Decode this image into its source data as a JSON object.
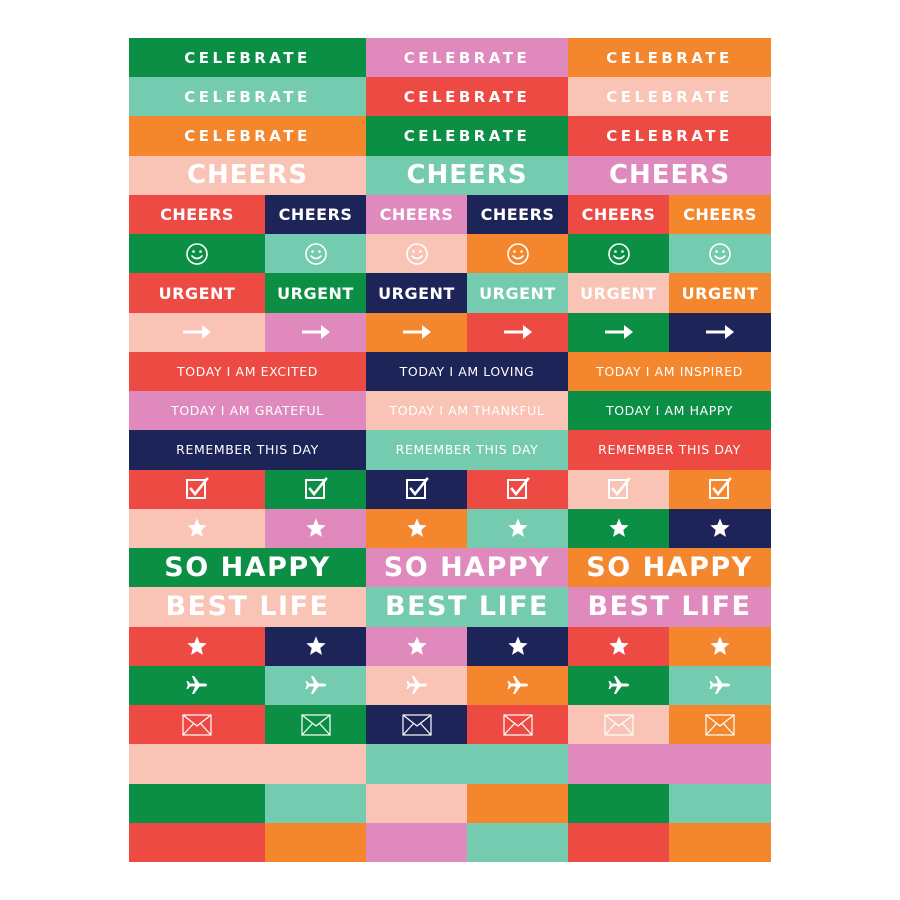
{
  "colors": {
    "green": "#0b8f45",
    "mint": "#74cbb0",
    "orange": "#f4862e",
    "red": "#ee4a44",
    "peach": "#f9c3b5",
    "pink": "#df89bd",
    "navy": "#1c2458"
  },
  "rows": [
    {
      "cells": [
        {
          "span": 2,
          "color": "green",
          "text": "CELEBRATE",
          "style": "spaced"
        },
        {
          "span": 2,
          "color": "pink",
          "text": "CELEBRATE",
          "style": "spaced"
        },
        {
          "span": 2,
          "color": "orange",
          "text": "CELEBRATE",
          "style": "spaced"
        }
      ]
    },
    {
      "cells": [
        {
          "span": 2,
          "color": "mint",
          "text": "CELEBRATE",
          "style": "spaced"
        },
        {
          "span": 2,
          "color": "red",
          "text": "CELEBRATE",
          "style": "spaced"
        },
        {
          "span": 2,
          "color": "peach",
          "text": "CELEBRATE",
          "style": "spaced"
        }
      ]
    },
    {
      "cells": [
        {
          "span": 2,
          "color": "orange",
          "text": "CELEBRATE",
          "style": "spaced"
        },
        {
          "span": 2,
          "color": "green",
          "text": "CELEBRATE",
          "style": "spaced"
        },
        {
          "span": 2,
          "color": "red",
          "text": "CELEBRATE",
          "style": "spaced"
        }
      ]
    },
    {
      "cells": [
        {
          "span": 2,
          "color": "peach",
          "text": "CHEERS",
          "style": "big"
        },
        {
          "span": 2,
          "color": "mint",
          "text": "CHEERS",
          "style": "big"
        },
        {
          "span": 2,
          "color": "pink",
          "text": "CHEERS",
          "style": "big"
        }
      ]
    },
    {
      "cells": [
        {
          "span": 1,
          "color": "red",
          "text": "CHEERS",
          "style": "mid"
        },
        {
          "span": 1,
          "color": "navy",
          "text": "CHEERS",
          "style": "mid"
        },
        {
          "span": 1,
          "color": "pink",
          "text": "CHEERS",
          "style": "mid"
        },
        {
          "span": 1,
          "color": "navy",
          "text": "CHEERS",
          "style": "mid"
        },
        {
          "span": 1,
          "color": "red",
          "text": "CHEERS",
          "style": "mid"
        },
        {
          "span": 1,
          "color": "orange",
          "text": "CHEERS",
          "style": "mid"
        }
      ]
    },
    {
      "cells": [
        {
          "span": 1,
          "color": "green",
          "icon": "smiley-icon"
        },
        {
          "span": 1,
          "color": "mint",
          "icon": "smiley-icon"
        },
        {
          "span": 1,
          "color": "peach",
          "icon": "smiley-icon"
        },
        {
          "span": 1,
          "color": "orange",
          "icon": "smiley-icon"
        },
        {
          "span": 1,
          "color": "green",
          "icon": "smiley-icon"
        },
        {
          "span": 1,
          "color": "mint",
          "icon": "smiley-icon"
        }
      ]
    },
    {
      "cells": [
        {
          "span": 1,
          "color": "red",
          "text": "URGENT",
          "style": "mid"
        },
        {
          "span": 1,
          "color": "green",
          "text": "URGENT",
          "style": "mid"
        },
        {
          "span": 1,
          "color": "navy",
          "text": "URGENT",
          "style": "mid"
        },
        {
          "span": 1,
          "color": "mint",
          "text": "URGENT",
          "style": "mid"
        },
        {
          "span": 1,
          "color": "peach",
          "text": "URGENT",
          "style": "mid"
        },
        {
          "span": 1,
          "color": "orange",
          "text": "URGENT",
          "style": "mid"
        }
      ]
    },
    {
      "cells": [
        {
          "span": 1,
          "color": "peach",
          "icon": "arrow-right-icon"
        },
        {
          "span": 1,
          "color": "pink",
          "icon": "arrow-right-icon"
        },
        {
          "span": 1,
          "color": "orange",
          "icon": "arrow-right-icon"
        },
        {
          "span": 1,
          "color": "red",
          "icon": "arrow-right-icon"
        },
        {
          "span": 1,
          "color": "green",
          "icon": "arrow-right-icon"
        },
        {
          "span": 1,
          "color": "navy",
          "icon": "arrow-right-icon"
        }
      ]
    },
    {
      "cells": [
        {
          "span": 2,
          "color": "red",
          "text": "TODAY I AM EXCITED",
          "style": "small"
        },
        {
          "span": 2,
          "color": "navy",
          "text": "TODAY I AM LOVING",
          "style": "small"
        },
        {
          "span": 2,
          "color": "orange",
          "text": "TODAY I AM INSPIRED",
          "style": "small"
        }
      ]
    },
    {
      "cells": [
        {
          "span": 2,
          "color": "pink",
          "text": "TODAY I AM GRATEFUL",
          "style": "small"
        },
        {
          "span": 2,
          "color": "peach",
          "text": "TODAY I AM THANKFUL",
          "style": "small"
        },
        {
          "span": 2,
          "color": "green",
          "text": "TODAY I AM HAPPY",
          "style": "small"
        }
      ]
    },
    {
      "cells": [
        {
          "span": 2,
          "color": "navy",
          "text": "REMEMBER THIS DAY",
          "style": "small"
        },
        {
          "span": 2,
          "color": "mint",
          "text": "REMEMBER THIS DAY",
          "style": "small"
        },
        {
          "span": 2,
          "color": "red",
          "text": "REMEMBER THIS DAY",
          "style": "small"
        }
      ]
    },
    {
      "cells": [
        {
          "span": 1,
          "color": "red",
          "icon": "checkbox-icon"
        },
        {
          "span": 1,
          "color": "green",
          "icon": "checkbox-icon"
        },
        {
          "span": 1,
          "color": "navy",
          "icon": "checkbox-icon"
        },
        {
          "span": 1,
          "color": "red",
          "icon": "checkbox-icon"
        },
        {
          "span": 1,
          "color": "peach",
          "icon": "checkbox-icon"
        },
        {
          "span": 1,
          "color": "orange",
          "icon": "checkbox-icon"
        }
      ]
    },
    {
      "cells": [
        {
          "span": 1,
          "color": "peach",
          "icon": "star-icon"
        },
        {
          "span": 1,
          "color": "pink",
          "icon": "star-icon"
        },
        {
          "span": 1,
          "color": "orange",
          "icon": "star-icon"
        },
        {
          "span": 1,
          "color": "mint",
          "icon": "star-icon"
        },
        {
          "span": 1,
          "color": "green",
          "icon": "star-icon"
        },
        {
          "span": 1,
          "color": "navy",
          "icon": "star-icon"
        }
      ]
    },
    {
      "cells": [
        {
          "span": 2,
          "color": "green",
          "text": "SO HAPPY",
          "style": "xl"
        },
        {
          "span": 2,
          "color": "pink",
          "text": "SO HAPPY",
          "style": "xl"
        },
        {
          "span": 2,
          "color": "orange",
          "text": "SO HAPPY",
          "style": "xl"
        }
      ]
    },
    {
      "cells": [
        {
          "span": 2,
          "color": "peach",
          "text": "BEST LIFE",
          "style": "xl"
        },
        {
          "span": 2,
          "color": "mint",
          "text": "BEST LIFE",
          "style": "xl"
        },
        {
          "span": 2,
          "color": "pink",
          "text": "BEST LIFE",
          "style": "xl"
        }
      ]
    },
    {
      "cells": [
        {
          "span": 1,
          "color": "red",
          "icon": "star-icon"
        },
        {
          "span": 1,
          "color": "navy",
          "icon": "star-icon"
        },
        {
          "span": 1,
          "color": "pink",
          "icon": "star-icon"
        },
        {
          "span": 1,
          "color": "navy",
          "icon": "star-icon"
        },
        {
          "span": 1,
          "color": "red",
          "icon": "star-icon"
        },
        {
          "span": 1,
          "color": "orange",
          "icon": "star-icon"
        }
      ]
    },
    {
      "cells": [
        {
          "span": 1,
          "color": "green",
          "icon": "airplane-icon"
        },
        {
          "span": 1,
          "color": "mint",
          "icon": "airplane-icon"
        },
        {
          "span": 1,
          "color": "peach",
          "icon": "airplane-icon"
        },
        {
          "span": 1,
          "color": "orange",
          "icon": "airplane-icon"
        },
        {
          "span": 1,
          "color": "green",
          "icon": "airplane-icon"
        },
        {
          "span": 1,
          "color": "mint",
          "icon": "airplane-icon"
        }
      ]
    },
    {
      "cells": [
        {
          "span": 1,
          "color": "red",
          "icon": "envelope-icon"
        },
        {
          "span": 1,
          "color": "green",
          "icon": "envelope-icon"
        },
        {
          "span": 1,
          "color": "navy",
          "icon": "envelope-icon"
        },
        {
          "span": 1,
          "color": "red",
          "icon": "envelope-icon"
        },
        {
          "span": 1,
          "color": "peach",
          "icon": "envelope-icon"
        },
        {
          "span": 1,
          "color": "orange",
          "icon": "envelope-icon"
        }
      ]
    },
    {
      "cells": [
        {
          "span": 2,
          "color": "peach"
        },
        {
          "span": 2,
          "color": "mint"
        },
        {
          "span": 2,
          "color": "pink"
        }
      ]
    },
    {
      "cells": [
        {
          "span": 1,
          "color": "green"
        },
        {
          "span": 1,
          "color": "mint"
        },
        {
          "span": 1,
          "color": "peach"
        },
        {
          "span": 1,
          "color": "orange"
        },
        {
          "span": 1,
          "color": "green"
        },
        {
          "span": 1,
          "color": "mint"
        }
      ]
    },
    {
      "cells": [
        {
          "span": 1,
          "color": "red"
        },
        {
          "span": 1,
          "color": "orange"
        },
        {
          "span": 1,
          "color": "pink"
        },
        {
          "span": 1,
          "color": "mint"
        },
        {
          "span": 1,
          "color": "red"
        },
        {
          "span": 1,
          "color": "orange"
        }
      ]
    }
  ]
}
